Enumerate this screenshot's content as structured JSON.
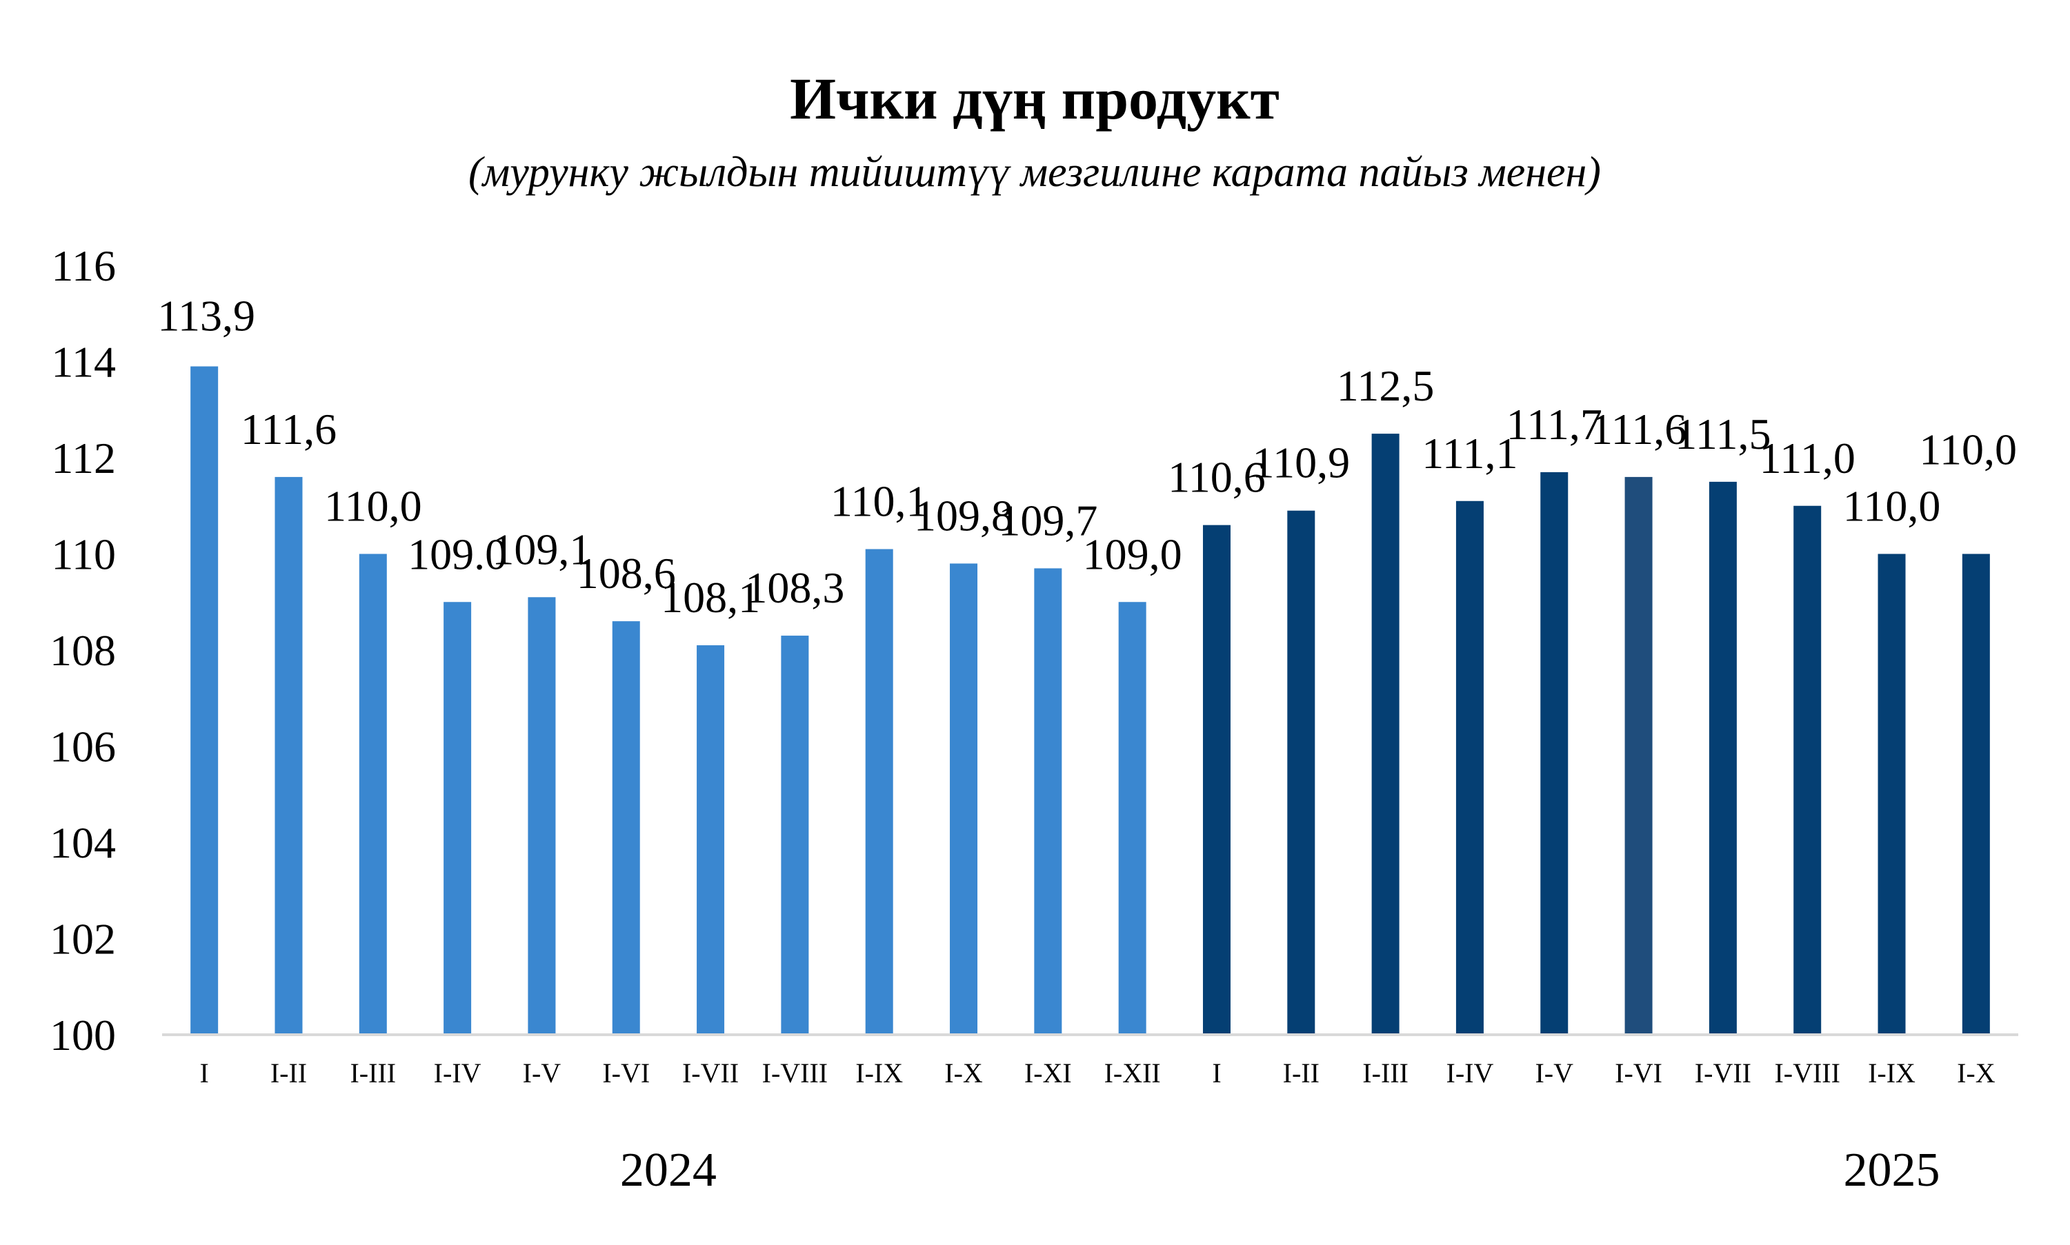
{
  "colors": {
    "series_2024": "#3A87D0",
    "series_2025": "#053F73",
    "highlight_2025": "#1F4D7C",
    "axis": "#D9D9D9"
  },
  "chart_data": {
    "type": "bar",
    "title": "Ички дүң продукт",
    "subtitle": "(мурунку жылдын тийиштүү мезгилине карата пайыз менен)",
    "xlabel": "",
    "ylabel": "",
    "ylim": [
      100,
      116
    ],
    "yticks": [
      "100",
      "102",
      "104",
      "106",
      "108",
      "110",
      "112",
      "114",
      "116"
    ],
    "grid": false,
    "legend": "none",
    "categories": [
      "I",
      "I-II",
      "I-III",
      "I-IV",
      "I-V",
      "I-VI",
      "I-VII",
      "I-VIII",
      "I-IX",
      "I-X",
      "I-XI",
      "I-XII",
      "I",
      "I-II",
      "I-III",
      "I-IV",
      "I-V",
      "I-VI",
      "I-VII",
      "I-VIII",
      "I-IX",
      "I-X"
    ],
    "values": [
      113.9,
      111.6,
      110.0,
      109.0,
      109.1,
      108.6,
      108.1,
      108.3,
      110.1,
      109.8,
      109.7,
      109.0,
      110.6,
      110.9,
      112.5,
      111.1,
      111.7,
      111.6,
      111.5,
      111.0,
      110.0,
      110.0
    ],
    "data_labels": [
      "113,9",
      "111,6",
      "110,0",
      "109.0",
      "109,1",
      "108,6",
      "108,1",
      "108,3",
      "110,1",
      "109,8",
      "109,7",
      "109,0",
      "110,6",
      "110,9",
      "112,5",
      "111,1",
      "111,7",
      "111,6",
      "111,5",
      "111,0",
      "110,0",
      "110,0"
    ],
    "year_groups": [
      {
        "label": "2024",
        "start": 0,
        "count": 12
      },
      {
        "label": "2025",
        "start": 12,
        "count": 10
      }
    ]
  }
}
